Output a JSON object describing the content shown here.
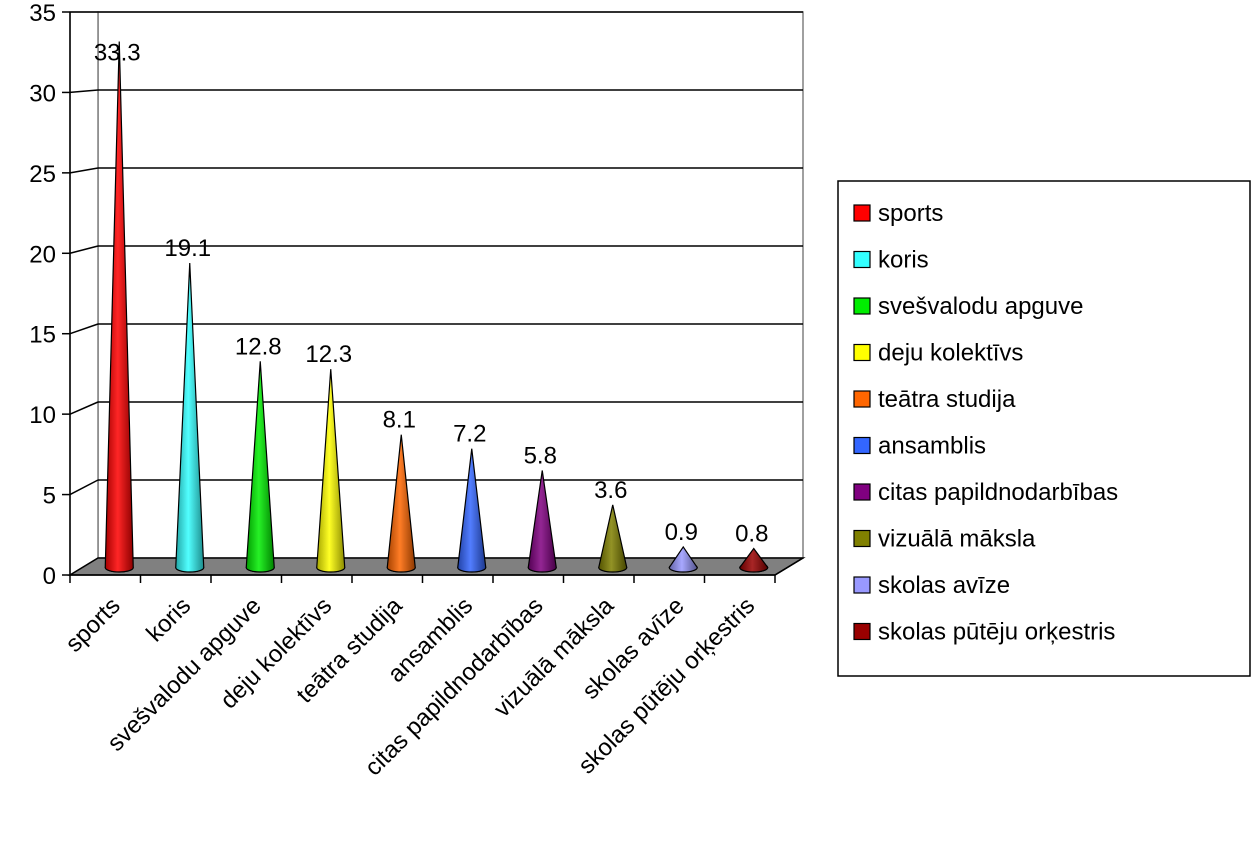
{
  "chart_data": {
    "type": "bar",
    "style": "3d-cone",
    "title": "",
    "xlabel": "",
    "ylabel": "",
    "ylim": [
      0,
      35
    ],
    "ytick_step": 5,
    "grid": true,
    "legend": "right",
    "categories": [
      "sports",
      "koris",
      "svešvalodu apguve",
      "deju kolektīvs",
      "teātra studija",
      "ansamblis",
      "citas papildnodarbības",
      "vizuālā māksla",
      "skolas avīze",
      "skolas pūtēju orķestris"
    ],
    "values": [
      33.3,
      19.1,
      12.8,
      12.3,
      8.1,
      7.2,
      5.8,
      3.6,
      0.9,
      0.8
    ],
    "data_labels": [
      "33.3",
      "19.1",
      "12.8",
      "12.3",
      "8.1",
      "7.2",
      "5.8",
      "3.6",
      "0.9",
      "0.8"
    ],
    "colors": [
      "#ff0000",
      "#33ffff",
      "#00ee00",
      "#ffff00",
      "#ff6600",
      "#3366ff",
      "#800080",
      "#808000",
      "#9999ff",
      "#990000"
    ],
    "floor_color": "#808080",
    "wall_color": "#ffffff"
  }
}
